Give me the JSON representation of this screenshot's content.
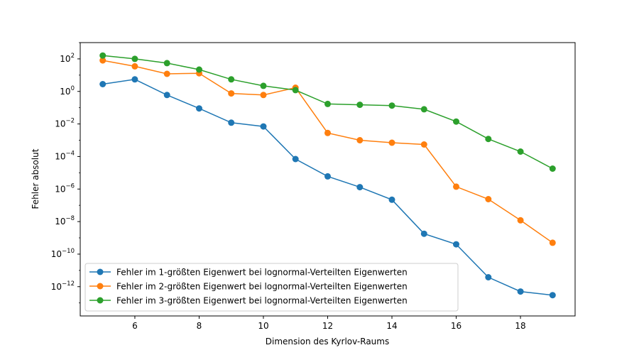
{
  "chart_data": {
    "type": "line",
    "title": "",
    "xlabel": "Dimension des Kyrlov-Raums",
    "ylabel": "Fehler absolut",
    "xlim": [
      4.3,
      19.7
    ],
    "ylim_log10": [
      -13.8,
      3.0
    ],
    "yscale": "log",
    "x_ticks": [
      6,
      8,
      10,
      12,
      14,
      16,
      18
    ],
    "y_ticks": [
      {
        "exp": 2,
        "label": "10",
        "sup": "2"
      },
      {
        "exp": 0,
        "label": "10",
        "sup": "0"
      },
      {
        "exp": -2,
        "label": "10",
        "sup": "−2"
      },
      {
        "exp": -4,
        "label": "10",
        "sup": "−4"
      },
      {
        "exp": -6,
        "label": "10",
        "sup": "−6"
      },
      {
        "exp": -8,
        "label": "10",
        "sup": "−8"
      },
      {
        "exp": -10,
        "label": "10",
        "sup": "−10"
      },
      {
        "exp": -12,
        "label": "10",
        "sup": "−12"
      }
    ],
    "grid": false,
    "legend_position": "lower-left",
    "x": [
      5,
      6,
      7,
      8,
      9,
      10,
      11,
      12,
      13,
      14,
      15,
      16,
      17,
      18,
      19
    ],
    "series": [
      {
        "name": "Fehler im 1-größten Eigenwert bei lognormal-Verteilten Eigenwerten",
        "color": "#1f77b4",
        "values": [
          2.8,
          5.5,
          0.6,
          0.09,
          0.012,
          0.007,
          7e-05,
          6e-06,
          1.3e-06,
          2.2e-07,
          1.8e-09,
          4e-10,
          3.8e-12,
          5e-13,
          3e-13
        ]
      },
      {
        "name": "Fehler im 2-größten Eigenwert bei lognormal-Verteilten Eigenwerten",
        "color": "#ff7f0e",
        "values": [
          80,
          35,
          12,
          13,
          0.75,
          0.6,
          1.7,
          0.0028,
          0.001,
          0.0007,
          0.00055,
          1.4e-06,
          2.4e-07,
          1.2e-08,
          5e-10
        ]
      },
      {
        "name": "Fehler im 3-größten Eigenwert bei lognormal-Verteilten Eigenwerten",
        "color": "#2ca02c",
        "values": [
          160,
          100,
          55,
          22,
          5.5,
          2.2,
          1.2,
          0.17,
          0.15,
          0.135,
          0.08,
          0.014,
          0.0012,
          0.0002,
          1.8e-05
        ]
      }
    ]
  }
}
